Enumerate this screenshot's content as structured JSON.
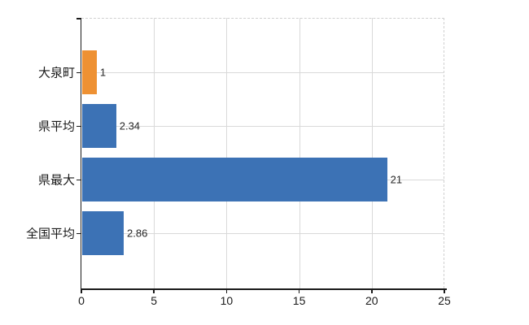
{
  "chart_data": {
    "type": "bar",
    "orientation": "horizontal",
    "title": "",
    "xlabel": "",
    "ylabel": "",
    "categories": [
      "大泉町",
      "県平均",
      "県最大",
      "全国平均"
    ],
    "values": [
      1,
      2.34,
      21,
      2.86
    ],
    "value_labels": [
      "1",
      "2.34",
      "21",
      "2.86"
    ],
    "bar_colors": [
      "#ee9133",
      "#3c72b5",
      "#3c72b5",
      "#3c72b5"
    ],
    "xlim": [
      0,
      25
    ],
    "xticks": [
      0,
      5,
      10,
      15,
      20,
      25
    ],
    "grid": "both",
    "legend": false
  },
  "colors": {
    "background": "#ffffff",
    "axis": "#1a1a1a",
    "gridline": "#d9d9d9",
    "border_dashed": "#d0d0d0",
    "tick_label": "#1a1a1a",
    "value_label": "#262626",
    "bar_blue": "#3c72b5",
    "bar_orange": "#ee9133"
  }
}
